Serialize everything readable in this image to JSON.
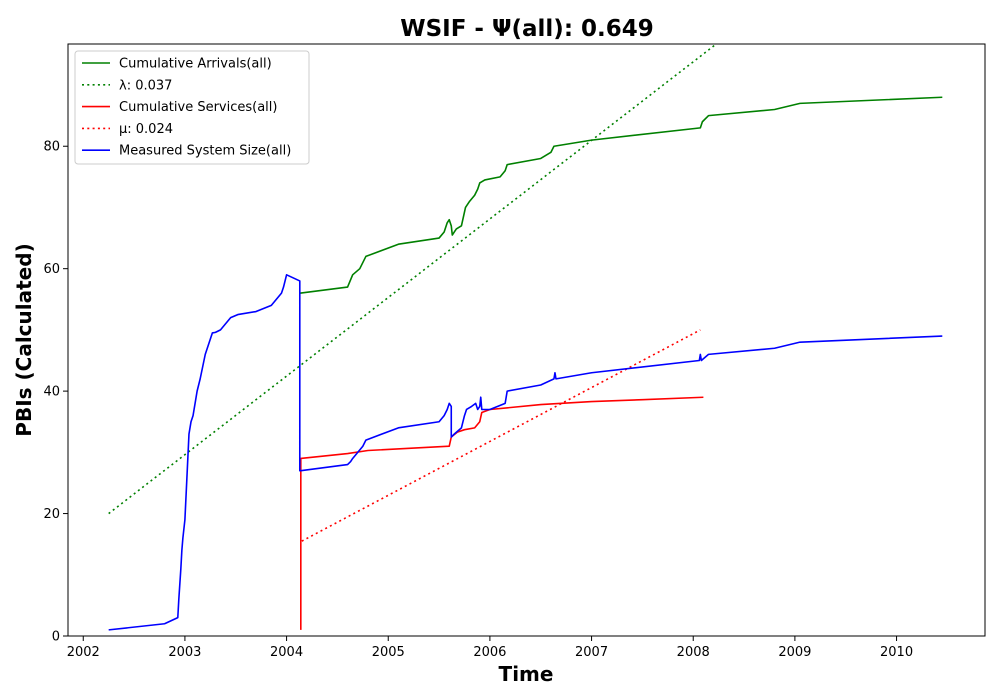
{
  "chart_data": {
    "type": "line",
    "title": "WSIF -  Ψ(all): 0.649",
    "xlabel": "Time",
    "ylabel": "PBIs (Calculated)",
    "xlim": [
      2001.85,
      2010.87
    ],
    "ylim": [
      0,
      96.7
    ],
    "x_ticks": [
      2002,
      2003,
      2004,
      2005,
      2006,
      2007,
      2008,
      2009,
      2010
    ],
    "y_ticks": [
      0,
      20,
      40,
      60,
      80
    ],
    "grid": false,
    "legend_position": "top-left",
    "series": [
      {
        "name": "Cumulative Arrivals(all)",
        "color": "#008000",
        "style": "solid",
        "x": [
          2004.13,
          2004.6,
          2004.65,
          2004.72,
          2004.78,
          2005.1,
          2005.5,
          2005.55,
          2005.58,
          2005.6,
          2005.62,
          2005.63,
          2005.65,
          2005.67,
          2005.72,
          2005.76,
          2005.8,
          2005.85,
          2005.88,
          2005.9,
          2005.95,
          2006.1,
          2006.15,
          2006.17,
          2006.5,
          2006.6,
          2006.63,
          2007.0,
          2008.07,
          2008.09,
          2008.15,
          2008.8,
          2009.05,
          2010.45
        ],
        "y": [
          56,
          57,
          59,
          60,
          62,
          64,
          65,
          66,
          67.5,
          68,
          67,
          65.5,
          66,
          66.5,
          67,
          70,
          71,
          72,
          73,
          74,
          74.5,
          75,
          76,
          77,
          78,
          79,
          80,
          81,
          83,
          84,
          85,
          86,
          87,
          88
        ]
      },
      {
        "name": "λ: 0.037",
        "color": "#008000",
        "style": "dotted",
        "x": [
          2002.25,
          2008.25
        ],
        "y": [
          20,
          97
        ]
      },
      {
        "name": "Cumulative Services(all)",
        "color": "#ff0000",
        "style": "solid",
        "x": [
          2004.14,
          2004.14,
          2004.14,
          2004.6,
          2004.8,
          2005.6,
          2005.62,
          2005.68,
          2005.75,
          2005.85,
          2005.9,
          2005.92,
          2006.0,
          2006.5,
          2007.0,
          2007.5,
          2008.1
        ],
        "y": [
          1,
          28,
          29,
          29.8,
          30.3,
          31,
          32.5,
          33.3,
          33.7,
          34,
          35,
          36.5,
          37,
          37.8,
          38.3,
          38.6,
          39
        ]
      },
      {
        "name": "μ: 0.024",
        "color": "#ff0000",
        "style": "dotted",
        "x": [
          2004.15,
          2008.07
        ],
        "y": [
          15.5,
          50
        ]
      },
      {
        "name": "Measured System Size(all)",
        "color": "#0000ff",
        "style": "solid",
        "x": [
          2002.25,
          2002.8,
          2002.93,
          2002.94,
          2002.96,
          2002.97,
          2002.98,
          2003.0,
          2003.02,
          2003.04,
          2003.06,
          2003.08,
          2003.09,
          2003.1,
          2003.12,
          2003.15,
          2003.2,
          2003.22,
          2003.24,
          2003.26,
          2003.27,
          2003.3,
          2003.35,
          2003.45,
          2003.52,
          2003.7,
          2003.85,
          2003.95,
          2003.97,
          2004.0,
          2004.13,
          2004.13,
          2004.14,
          2004.6,
          2004.63,
          2004.65,
          2004.75,
          2004.78,
          2005.1,
          2005.5,
          2005.55,
          2005.58,
          2005.6,
          2005.62,
          2005.62,
          2005.65,
          2005.72,
          2005.75,
          2005.77,
          2005.82,
          2005.86,
          2005.88,
          2005.9,
          2005.91,
          2005.92,
          2006.0,
          2006.15,
          2006.17,
          2006.5,
          2006.63,
          2006.64,
          2006.65,
          2007.0,
          2008.06,
          2008.07,
          2008.08,
          2008.15,
          2008.8,
          2009.05,
          2010.45
        ],
        "y": [
          1,
          2,
          3,
          6,
          11,
          14,
          16,
          19,
          26,
          33,
          35,
          36,
          37,
          38,
          40,
          42,
          46,
          47,
          48,
          49,
          49.5,
          49.6,
          50,
          52,
          52.5,
          53,
          54,
          56,
          57,
          59,
          58,
          27,
          27,
          28,
          28.5,
          29,
          31,
          32,
          34,
          35,
          36,
          37,
          38,
          37.5,
          32.5,
          33,
          34,
          36,
          37,
          37.5,
          38,
          37,
          37.5,
          39,
          37,
          37,
          38,
          40,
          41,
          42,
          43,
          42,
          43,
          45,
          46,
          45,
          46,
          47,
          48,
          49
        ]
      }
    ]
  }
}
